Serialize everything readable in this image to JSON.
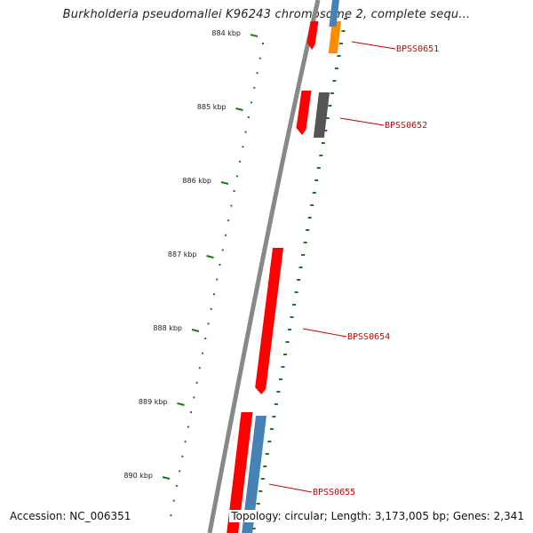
{
  "title": "Burkholderia pseudomallei K96243 chromosome 2, complete sequ...",
  "accession": "Accession: NC_006351",
  "topology": "Topology: circular; Length: 3,173,005 bp; Genes: 2,341",
  "ruler": [
    "884 kbp",
    "885 kbp",
    "886 kbp",
    "887 kbp",
    "888 kbp",
    "889 kbp",
    "890 kbp"
  ],
  "genes": [
    {
      "label": "BPSS0651",
      "color": "#ff8c00"
    },
    {
      "label": "BPSS0652",
      "color": "#555555"
    },
    {
      "label": "BPSS0654",
      "color": "#ff0000"
    },
    {
      "label": "BPSS0655",
      "color": "#4682b4"
    }
  ],
  "colors": {
    "forward_strand": "#ff0000",
    "backbone": "#888888",
    "ticks": "#1a7a1a",
    "label": "#cc0000"
  }
}
